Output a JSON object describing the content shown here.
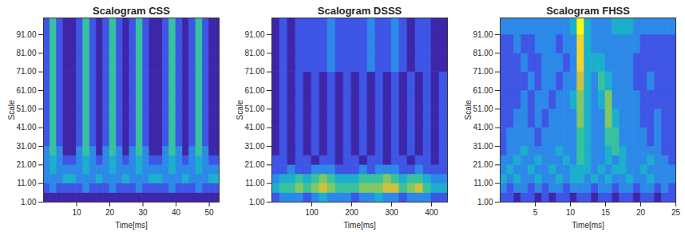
{
  "chart_data": [
    {
      "type": "heatmap",
      "title": "Scalogram CSS",
      "x_label": "Time[ms]",
      "y_label": "Scale",
      "xlim": [
        0,
        53
      ],
      "ylim": [
        1,
        100
      ],
      "xticks": [
        10,
        20,
        30,
        40,
        50
      ],
      "yticks": [
        {
          "value": 1,
          "label": "1.00"
        },
        {
          "value": 11,
          "label": "11.00"
        },
        {
          "value": 21,
          "label": "21.00"
        },
        {
          "value": 31,
          "label": "31.00"
        },
        {
          "value": 41,
          "label": "41.00"
        },
        {
          "value": 51,
          "label": "51.00"
        },
        {
          "value": 61,
          "label": "61.00"
        },
        {
          "value": 71,
          "label": "71.00"
        },
        {
          "value": 81,
          "label": "81.00"
        },
        {
          "value": 91,
          "label": "91.00"
        }
      ],
      "x_edges": [
        0,
        2,
        4,
        6,
        8,
        10,
        12,
        14,
        16,
        18,
        20,
        22,
        24,
        26,
        28,
        30,
        32,
        34,
        36,
        38,
        40,
        42,
        44,
        46,
        48,
        50,
        52,
        54
      ],
      "y_edges": [
        1,
        6,
        11,
        16,
        21,
        26,
        31,
        41,
        51,
        61,
        71,
        81,
        91,
        100
      ],
      "cells": [
        [
          1,
          1,
          1,
          1,
          1,
          1,
          1,
          1,
          1,
          1,
          1,
          1,
          1,
          1,
          1,
          1,
          1,
          1,
          1,
          1,
          1,
          1,
          1,
          1,
          1,
          1,
          1
        ],
        [
          2,
          3,
          2,
          2,
          2,
          2,
          3,
          2,
          2,
          2,
          3,
          2,
          2,
          2,
          3,
          2,
          2,
          2,
          2,
          3,
          2,
          2,
          2,
          3,
          2,
          2,
          2
        ],
        [
          3,
          3,
          3,
          4,
          4,
          3,
          3,
          3,
          4,
          3,
          3,
          3,
          4,
          3,
          3,
          3,
          4,
          4,
          3,
          3,
          3,
          4,
          3,
          3,
          3,
          4,
          4
        ],
        [
          3,
          4,
          3,
          3,
          3,
          3,
          4,
          3,
          3,
          3,
          4,
          3,
          3,
          3,
          4,
          3,
          3,
          3,
          3,
          4,
          3,
          3,
          3,
          4,
          3,
          3,
          3
        ],
        [
          3,
          4,
          3,
          2,
          2,
          3,
          4,
          3,
          2,
          3,
          4,
          3,
          2,
          3,
          4,
          3,
          2,
          2,
          3,
          4,
          3,
          2,
          3,
          4,
          3,
          2,
          2
        ],
        [
          3,
          5,
          3,
          1,
          1,
          3,
          5,
          3,
          1,
          3,
          5,
          3,
          1,
          3,
          5,
          3,
          1,
          1,
          3,
          5,
          3,
          1,
          3,
          5,
          3,
          1,
          1
        ],
        [
          2,
          5,
          2,
          1,
          1,
          2,
          5,
          2,
          1,
          2,
          5,
          2,
          1,
          2,
          5,
          2,
          1,
          1,
          2,
          5,
          2,
          1,
          2,
          5,
          2,
          1,
          1
        ],
        [
          2,
          5,
          2,
          1,
          1,
          2,
          5,
          2,
          1,
          2,
          5,
          2,
          1,
          2,
          5,
          2,
          1,
          1,
          2,
          5,
          2,
          1,
          2,
          5,
          2,
          1,
          1
        ],
        [
          2,
          5,
          2,
          1,
          1,
          2,
          5,
          2,
          1,
          2,
          5,
          2,
          1,
          2,
          5,
          2,
          1,
          1,
          2,
          5,
          2,
          1,
          2,
          5,
          2,
          1,
          1
        ],
        [
          2,
          5,
          2,
          1,
          1,
          2,
          5,
          2,
          1,
          2,
          5,
          2,
          1,
          2,
          5,
          2,
          1,
          1,
          2,
          5,
          2,
          1,
          2,
          5,
          2,
          1,
          1
        ],
        [
          2,
          5,
          2,
          1,
          1,
          2,
          5,
          2,
          1,
          2,
          5,
          2,
          1,
          2,
          5,
          2,
          1,
          1,
          2,
          5,
          2,
          1,
          2,
          5,
          2,
          1,
          1
        ],
        [
          2,
          5,
          2,
          1,
          1,
          2,
          5,
          2,
          1,
          2,
          5,
          2,
          1,
          2,
          5,
          2,
          1,
          1,
          2,
          5,
          2,
          1,
          2,
          5,
          2,
          1,
          1
        ],
        [
          2,
          5,
          2,
          1,
          1,
          2,
          5,
          2,
          1,
          2,
          5,
          2,
          1,
          2,
          5,
          2,
          1,
          1,
          2,
          5,
          2,
          1,
          2,
          5,
          2,
          1,
          1
        ]
      ]
    },
    {
      "type": "heatmap",
      "title": "Scalogram DSSS",
      "x_label": "Time[ms]",
      "y_label": "Scale",
      "xlim": [
        0,
        440
      ],
      "ylim": [
        1,
        100
      ],
      "xticks": [
        100,
        200,
        300,
        400
      ],
      "yticks": [
        {
          "value": 1,
          "label": "1.00"
        },
        {
          "value": 11,
          "label": "11.00"
        },
        {
          "value": 21,
          "label": "21.00"
        },
        {
          "value": 31,
          "label": "31.00"
        },
        {
          "value": 41,
          "label": "41.00"
        },
        {
          "value": 51,
          "label": "51.00"
        },
        {
          "value": 61,
          "label": "61.00"
        },
        {
          "value": 71,
          "label": "71.00"
        },
        {
          "value": 81,
          "label": "81.00"
        },
        {
          "value": 91,
          "label": "91.00"
        }
      ],
      "x_edges": [
        0,
        20,
        40,
        60,
        80,
        100,
        120,
        140,
        160,
        180,
        200,
        220,
        240,
        260,
        280,
        300,
        320,
        340,
        360,
        380,
        400,
        420,
        440
      ],
      "y_edges": [
        1,
        6,
        11,
        16,
        21,
        26,
        31,
        41,
        51,
        61,
        71,
        81,
        91,
        100
      ],
      "cells": [
        [
          2,
          3,
          3,
          3,
          2,
          3,
          4,
          3,
          3,
          3,
          2,
          3,
          3,
          4,
          3,
          3,
          2,
          3,
          3,
          3,
          2,
          2
        ],
        [
          4,
          5,
          5,
          6,
          5,
          6,
          7,
          6,
          5,
          5,
          5,
          6,
          6,
          6,
          7,
          7,
          5,
          6,
          7,
          5,
          4,
          4
        ],
        [
          3,
          4,
          4,
          5,
          4,
          5,
          6,
          5,
          4,
          4,
          4,
          5,
          5,
          5,
          6,
          5,
          4,
          5,
          5,
          4,
          3,
          3
        ],
        [
          2,
          2,
          3,
          2,
          2,
          3,
          3,
          3,
          2,
          2,
          2,
          3,
          2,
          3,
          3,
          3,
          2,
          2,
          3,
          2,
          2,
          2
        ],
        [
          2,
          2,
          1,
          2,
          2,
          1,
          2,
          2,
          1,
          2,
          2,
          1,
          2,
          2,
          1,
          2,
          2,
          1,
          2,
          2,
          1,
          2
        ],
        [
          1,
          2,
          1,
          2,
          1,
          2,
          1,
          2,
          1,
          2,
          1,
          2,
          1,
          2,
          1,
          2,
          1,
          2,
          1,
          2,
          1,
          2
        ],
        [
          1,
          2,
          1,
          2,
          1,
          2,
          1,
          2,
          1,
          2,
          1,
          2,
          1,
          2,
          1,
          2,
          1,
          2,
          1,
          2,
          1,
          2
        ],
        [
          1,
          2,
          1,
          2,
          1,
          2,
          1,
          2,
          1,
          2,
          1,
          2,
          1,
          2,
          1,
          2,
          1,
          2,
          1,
          2,
          1,
          2
        ],
        [
          1,
          2,
          1,
          2,
          1,
          2,
          1,
          2,
          1,
          2,
          1,
          2,
          1,
          2,
          1,
          2,
          1,
          2,
          1,
          2,
          1,
          2
        ],
        [
          1,
          2,
          1,
          2,
          1,
          2,
          1,
          2,
          1,
          2,
          1,
          2,
          1,
          2,
          1,
          2,
          1,
          2,
          1,
          2,
          1,
          2
        ],
        [
          1,
          2,
          1,
          2,
          2,
          2,
          2,
          3,
          2,
          2,
          2,
          2,
          3,
          2,
          2,
          3,
          2,
          1,
          2,
          2,
          1,
          1
        ],
        [
          1,
          2,
          1,
          2,
          2,
          2,
          2,
          3,
          2,
          2,
          2,
          2,
          3,
          2,
          2,
          3,
          2,
          1,
          2,
          2,
          1,
          1
        ],
        [
          1,
          2,
          1,
          2,
          2,
          2,
          2,
          3,
          2,
          2,
          2,
          2,
          3,
          2,
          2,
          3,
          2,
          1,
          2,
          2,
          1,
          1
        ]
      ]
    },
    {
      "type": "heatmap",
      "title": "Scalogram FHSS",
      "x_label": "Time[ms]",
      "y_label": "Scale",
      "xlim": [
        0,
        25
      ],
      "ylim": [
        1,
        100
      ],
      "xticks": [
        5,
        10,
        15,
        20,
        25
      ],
      "yticks": [
        {
          "value": 1,
          "label": "1.00"
        },
        {
          "value": 11,
          "label": "11.00"
        },
        {
          "value": 21,
          "label": "21.00"
        },
        {
          "value": 31,
          "label": "31.00"
        },
        {
          "value": 41,
          "label": "41.00"
        },
        {
          "value": 51,
          "label": "51.00"
        },
        {
          "value": 61,
          "label": "61.00"
        },
        {
          "value": 71,
          "label": "71.00"
        },
        {
          "value": 81,
          "label": "81.00"
        },
        {
          "value": 91,
          "label": "91.00"
        }
      ],
      "x_edges": [
        0,
        1,
        2,
        3,
        4,
        5,
        6,
        7,
        8,
        9,
        10,
        11,
        12,
        13,
        14,
        15,
        16,
        17,
        18,
        19,
        20,
        21,
        22,
        23,
        24,
        25
      ],
      "y_edges": [
        1,
        6,
        11,
        16,
        21,
        26,
        31,
        41,
        51,
        61,
        71,
        81,
        91,
        100
      ],
      "cells": [
        [
          2,
          2,
          1,
          2,
          2,
          1,
          2,
          1,
          2,
          2,
          1,
          2,
          2,
          1,
          2,
          2,
          1,
          2,
          2,
          1,
          2,
          2,
          1,
          2,
          2
        ],
        [
          3,
          2,
          3,
          3,
          2,
          3,
          2,
          3,
          3,
          2,
          3,
          3,
          3,
          2,
          3,
          3,
          2,
          3,
          3,
          2,
          3,
          3,
          2,
          3,
          2
        ],
        [
          4,
          3,
          4,
          3,
          3,
          4,
          3,
          3,
          4,
          3,
          4,
          4,
          3,
          4,
          3,
          4,
          3,
          3,
          4,
          3,
          3,
          4,
          3,
          3,
          3
        ],
        [
          3,
          4,
          3,
          3,
          4,
          3,
          3,
          4,
          3,
          3,
          4,
          4,
          4,
          3,
          4,
          3,
          4,
          4,
          3,
          3,
          4,
          3,
          3,
          3,
          3
        ],
        [
          3,
          3,
          4,
          3,
          3,
          4,
          3,
          3,
          3,
          4,
          3,
          5,
          4,
          3,
          3,
          4,
          3,
          4,
          3,
          3,
          3,
          4,
          3,
          3,
          2
        ],
        [
          2,
          3,
          3,
          4,
          3,
          3,
          3,
          3,
          4,
          3,
          3,
          5,
          4,
          3,
          3,
          4,
          5,
          4,
          3,
          3,
          3,
          3,
          3,
          2,
          2
        ],
        [
          2,
          3,
          3,
          3,
          3,
          2,
          3,
          3,
          3,
          3,
          3,
          5,
          4,
          3,
          3,
          5,
          5,
          3,
          3,
          3,
          3,
          2,
          3,
          2,
          2
        ],
        [
          2,
          2,
          3,
          3,
          2,
          3,
          2,
          3,
          3,
          3,
          3,
          6,
          4,
          3,
          3,
          6,
          4,
          3,
          3,
          3,
          2,
          2,
          3,
          2,
          2
        ],
        [
          2,
          2,
          2,
          3,
          2,
          3,
          3,
          2,
          3,
          3,
          4,
          6,
          4,
          3,
          4,
          6,
          3,
          3,
          3,
          3,
          2,
          2,
          2,
          2,
          2
        ],
        [
          2,
          2,
          2,
          2,
          3,
          2,
          3,
          3,
          2,
          3,
          3,
          7,
          4,
          3,
          5,
          4,
          3,
          3,
          3,
          2,
          2,
          3,
          2,
          2,
          2
        ],
        [
          2,
          2,
          2,
          3,
          2,
          2,
          3,
          3,
          3,
          2,
          3,
          8,
          4,
          4,
          4,
          3,
          3,
          3,
          3,
          2,
          2,
          2,
          2,
          2,
          2
        ],
        [
          2,
          2,
          3,
          2,
          2,
          3,
          3,
          3,
          2,
          3,
          3,
          8,
          4,
          3,
          3,
          3,
          3,
          3,
          3,
          3,
          2,
          2,
          2,
          2,
          2
        ],
        [
          3,
          3,
          3,
          3,
          3,
          3,
          3,
          3,
          3,
          3,
          4,
          9,
          4,
          3,
          3,
          3,
          4,
          4,
          4,
          3,
          3,
          3,
          3,
          3,
          3
        ]
      ]
    }
  ]
}
